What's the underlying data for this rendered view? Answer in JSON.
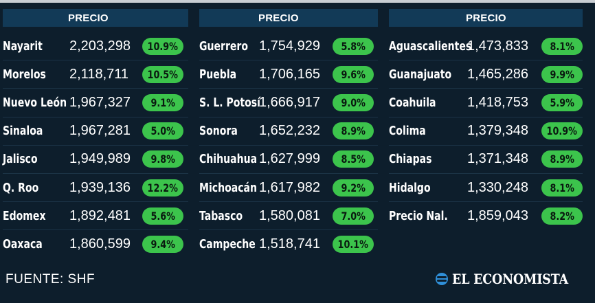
{
  "columns": [
    {
      "header": "PRECIO",
      "rows": [
        {
          "state": "Nayarit",
          "price": "2,203,298",
          "pct": "10.9%"
        },
        {
          "state": "Morelos",
          "price": "2,118,711",
          "pct": "10.5%"
        },
        {
          "state": "Nuevo León",
          "price": "1,967,327",
          "pct": "9.1%"
        },
        {
          "state": "Sinaloa",
          "price": "1,967,281",
          "pct": "5.0%"
        },
        {
          "state": "Jalisco",
          "price": "1,949,989",
          "pct": "9.8%"
        },
        {
          "state": "Q. Roo",
          "price": "1,939,136",
          "pct": "12.2%"
        },
        {
          "state": "Edomex",
          "price": "1,892,481",
          "pct": "5.6%"
        },
        {
          "state": "Oaxaca",
          "price": "1,860,599",
          "pct": "9.4%"
        }
      ]
    },
    {
      "header": "PRECIO",
      "rows": [
        {
          "state": "Guerrero",
          "price": "1,754,929",
          "pct": "5.8%"
        },
        {
          "state": "Puebla",
          "price": "1,706,165",
          "pct": "9.6%"
        },
        {
          "state": "S. L. Potosí",
          "price": "1,666,917",
          "pct": "9.0%"
        },
        {
          "state": "Sonora",
          "price": "1,652,232",
          "pct": "8.9%"
        },
        {
          "state": "Chihuahua",
          "price": "1,627,999",
          "pct": "8.5%"
        },
        {
          "state": "Michoacán",
          "price": "1,617,982",
          "pct": "9.2%"
        },
        {
          "state": "Tabasco",
          "price": "1,580,081",
          "pct": "7.0%"
        },
        {
          "state": "Campeche",
          "price": "1,518,741",
          "pct": "10.1%"
        }
      ]
    },
    {
      "header": "PRECIO",
      "rows": [
        {
          "state": "Aguascalientes",
          "price": "1,473,833",
          "pct": "8.1%"
        },
        {
          "state": "Guanajuato",
          "price": "1,465,286",
          "pct": "9.9%"
        },
        {
          "state": "Coahuila",
          "price": "1,418,753",
          "pct": "5.9%"
        },
        {
          "state": "Colima",
          "price": "1,379,348",
          "pct": "10.9%"
        },
        {
          "state": "Chiapas",
          "price": "1,371,348",
          "pct": "8.9%"
        },
        {
          "state": "Hidalgo",
          "price": "1,330,248",
          "pct": "8.1%"
        },
        {
          "state": "Precio Nal.",
          "price": "1,859,043",
          "pct": "8.2%"
        }
      ]
    }
  ],
  "footer": {
    "source": "FUENTE: SHF",
    "logo_text": "EL ECONOMISTA"
  },
  "colors": {
    "background": "#0d1e2c",
    "header_band": "#123a57",
    "pill": "#3cc44c"
  }
}
